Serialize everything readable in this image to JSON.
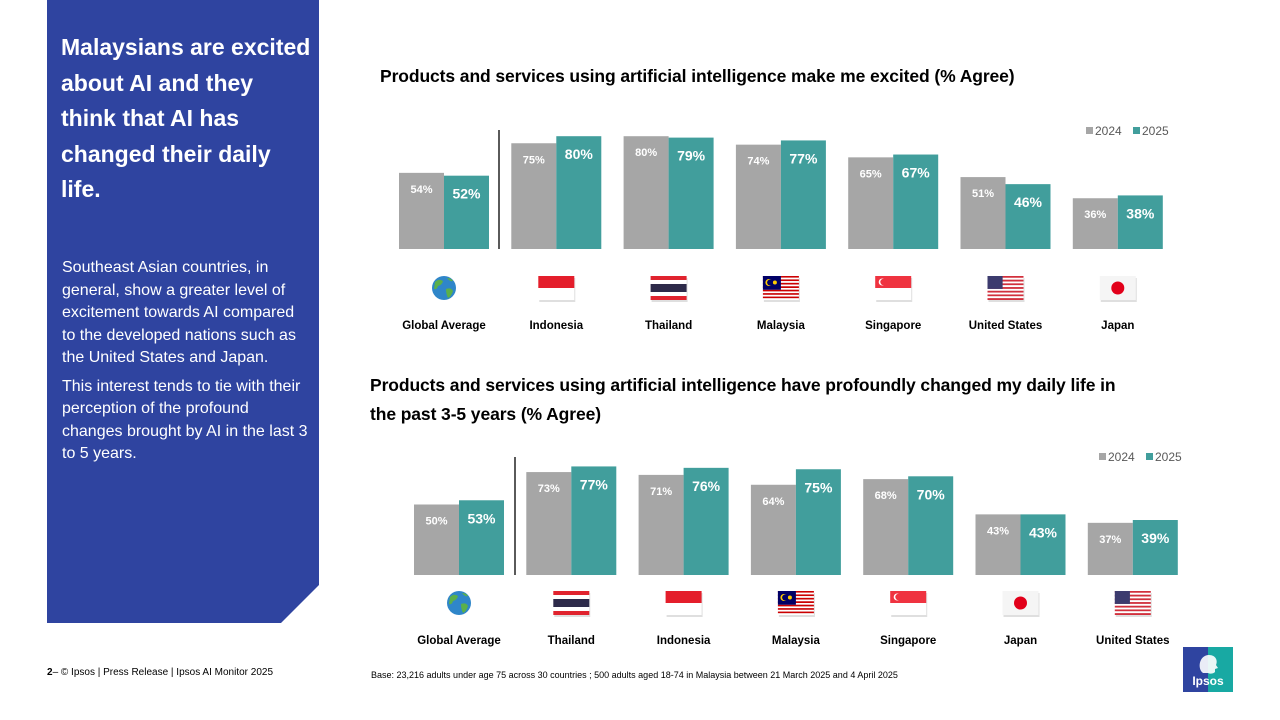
{
  "panel": {
    "headline": "Malaysians are excited about AI and they think that AI has changed their daily life.",
    "paragraphs": [
      "Southeast Asian countries, in general, show a greater level of excitement towards AI compared to the developed nations such as the United States and Japan.",
      "This interest tends to tie with their perception of the profound changes brought by AI in the last 3 to 5 years."
    ]
  },
  "footer": {
    "page_number": "2",
    "credit": "– © Ipsos | Press Release | Ipsos AI Monitor 2025",
    "base_note": "Base: 23,216 adults under age 75 across 30 countries ; 500 adults aged 18-74 in Malaysia between 21 March 2025 and 4 April 2025",
    "logo_text": "Ipsos"
  },
  "colors": {
    "panel_bg": "#2f44a0",
    "series_2024": "#a6a6a6",
    "series_2025": "#419e9c"
  },
  "chart_data": [
    {
      "type": "bar",
      "title": "Products and services using artificial intelligence make me excited (% Agree)",
      "categories": [
        "Global Average",
        "Indonesia",
        "Thailand",
        "Malaysia",
        "Singapore",
        "United States",
        "Japan"
      ],
      "category_icons": [
        "globe-icon",
        "flag-indonesia-icon",
        "flag-thailand-icon",
        "flag-malaysia-icon",
        "flag-singapore-icon",
        "flag-united-states-icon",
        "flag-japan-icon"
      ],
      "series": [
        {
          "name": "2024",
          "values": [
            54,
            75,
            80,
            74,
            65,
            51,
            36
          ]
        },
        {
          "name": "2025",
          "values": [
            52,
            80,
            79,
            77,
            67,
            46,
            38
          ]
        }
      ],
      "unit": "%",
      "legend": "top-right",
      "separator_after_index": 0,
      "ylim": [
        0,
        100
      ],
      "grid": false
    },
    {
      "type": "bar",
      "title": "Products and services using artificial intelligence have profoundly changed my daily life in the past 3-5 years (% Agree)",
      "categories": [
        "Global Average",
        "Thailand",
        "Indonesia",
        "Malaysia",
        "Singapore",
        "Japan",
        "United States"
      ],
      "category_icons": [
        "globe-icon",
        "flag-thailand-icon",
        "flag-indonesia-icon",
        "flag-malaysia-icon",
        "flag-singapore-icon",
        "flag-japan-icon",
        "flag-united-states-icon"
      ],
      "series": [
        {
          "name": "2024",
          "values": [
            50,
            73,
            71,
            64,
            68,
            43,
            37
          ]
        },
        {
          "name": "2025",
          "values": [
            53,
            77,
            76,
            75,
            70,
            43,
            39
          ]
        }
      ],
      "unit": "%",
      "legend": "top-right",
      "separator_after_index": 0,
      "ylim": [
        0,
        100
      ],
      "grid": false
    }
  ]
}
